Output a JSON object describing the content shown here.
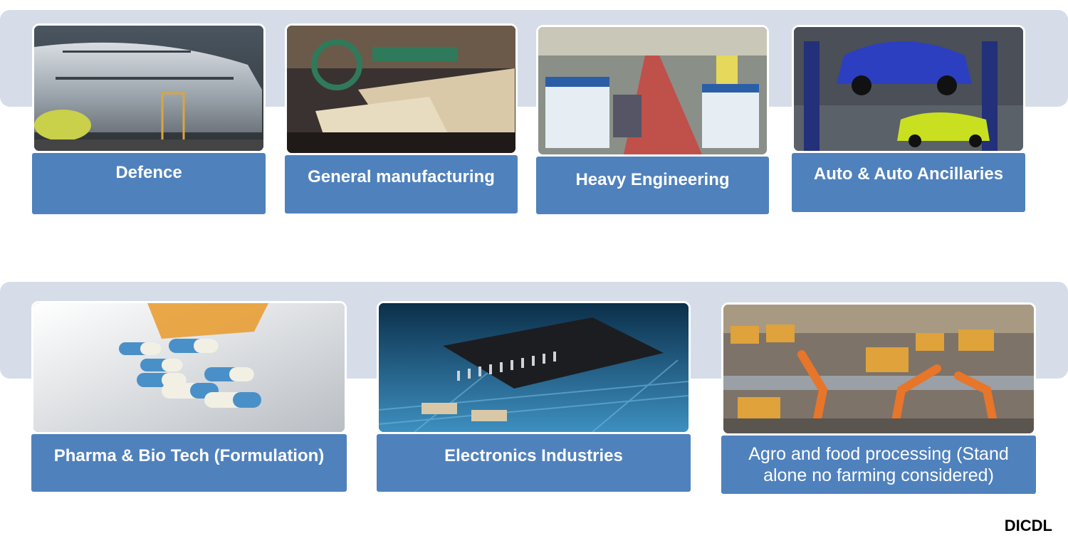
{
  "sectors": {
    "defence": {
      "label": "Defence",
      "image": "aircraft-assembly-photo"
    },
    "general_manufacturing": {
      "label": "General manufacturing",
      "image": "textile-looms-photo"
    },
    "heavy_engineering": {
      "label": "Heavy Engineering",
      "image": "rail-coach-factory-photo"
    },
    "auto": {
      "label": "Auto & Auto Ancillaries",
      "image": "car-lift-workshop-photo"
    },
    "pharma": {
      "label": "Pharma & Bio Tech (Formulation)",
      "image": "capsules-pill-bottle-photo"
    },
    "electronics": {
      "label": "Electronics Industries",
      "image": "circuit-board-chip-photo"
    },
    "agro": {
      "label": "Agro and food processing (Stand alone no farming considered)",
      "image": "robotic-food-packing-photo"
    }
  },
  "footer": {
    "brand": "DICDL"
  },
  "colors": {
    "label_bg": "#4f81bd",
    "band_bg": "#d6dde9",
    "label_text": "#ffffff"
  }
}
